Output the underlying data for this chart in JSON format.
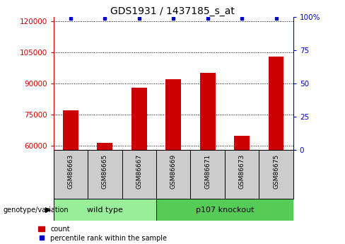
{
  "title": "GDS1931 / 1437185_s_at",
  "samples": [
    "GSM86663",
    "GSM86665",
    "GSM86667",
    "GSM86669",
    "GSM86671",
    "GSM86673",
    "GSM86675"
  ],
  "count_values": [
    77000,
    61500,
    88000,
    92000,
    95000,
    65000,
    103000
  ],
  "percentile_values": [
    99,
    99,
    99,
    99,
    99,
    99,
    99
  ],
  "ylim_left": [
    58000,
    122000
  ],
  "ylim_right": [
    0,
    100
  ],
  "yticks_left": [
    60000,
    75000,
    90000,
    105000,
    120000
  ],
  "yticks_right": [
    0,
    25,
    50,
    75,
    100
  ],
  "bar_color": "#cc0000",
  "dot_color": "#0000cc",
  "bar_width": 0.45,
  "group1_label": "wild type",
  "group2_label": "p107 knockout",
  "group1_indices": [
    0,
    1,
    2
  ],
  "group2_indices": [
    3,
    4,
    5,
    6
  ],
  "genotype_label": "genotype/variation",
  "legend_count": "count",
  "legend_percentile": "percentile rank within the sample",
  "sample_box_color": "#cccccc",
  "group1_color": "#99ee99",
  "group2_color": "#55cc55",
  "title_fontsize": 10,
  "tick_fontsize": 7.5,
  "label_fontsize": 8
}
